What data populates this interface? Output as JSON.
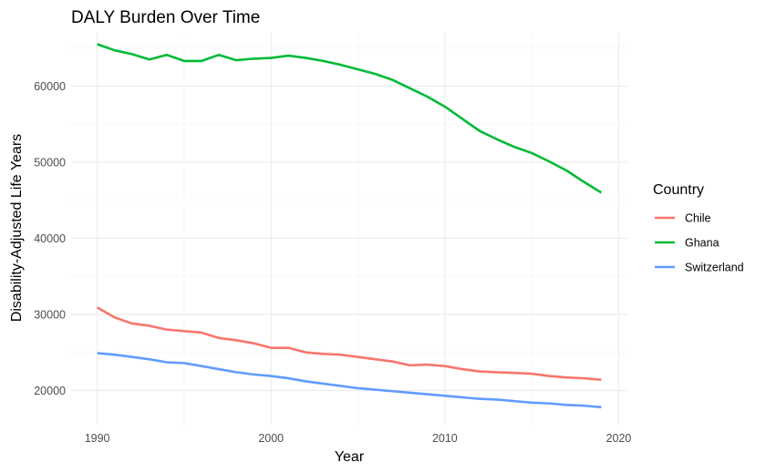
{
  "chart_data": {
    "type": "line",
    "title": "DALY Burden Over Time",
    "xlabel": "Year",
    "ylabel": "Disability-Adjusted Life Years",
    "x": [
      1990,
      1991,
      1992,
      1993,
      1994,
      1995,
      1996,
      1997,
      1998,
      1999,
      2000,
      2001,
      2002,
      2003,
      2004,
      2005,
      2006,
      2007,
      2008,
      2009,
      2010,
      2011,
      2012,
      2013,
      2014,
      2015,
      2016,
      2017,
      2018,
      2019
    ],
    "xlim": [
      1988.5,
      2020.5
    ],
    "ylim": [
      15500,
      67000
    ],
    "x_ticks": [
      1990,
      2000,
      2010,
      2020
    ],
    "y_ticks": [
      20000,
      30000,
      40000,
      50000,
      60000
    ],
    "x_tick_labels": [
      "1990",
      "2000",
      "2010",
      "2020"
    ],
    "y_tick_labels": [
      "20000",
      "30000",
      "40000",
      "50000",
      "60000"
    ],
    "grid": true,
    "legend": {
      "title": "Country",
      "position": "right"
    },
    "series": [
      {
        "name": "Chile",
        "color": "#F8766D",
        "values": [
          30900,
          29600,
          28800,
          28500,
          28000,
          27800,
          27600,
          26900,
          26600,
          26200,
          25600,
          25600,
          25000,
          24800,
          24700,
          24400,
          24100,
          23800,
          23300,
          23400,
          23200,
          22800,
          22500,
          22400,
          22300,
          22200,
          21900,
          21700,
          21600,
          21400
        ]
      },
      {
        "name": "Ghana",
        "color": "#00BA38",
        "values": [
          65500,
          64700,
          64200,
          63500,
          64100,
          63300,
          63300,
          64100,
          63400,
          63600,
          63700,
          64000,
          63700,
          63300,
          62800,
          62200,
          61600,
          60800,
          59700,
          58600,
          57300,
          55700,
          54100,
          53000,
          52000,
          51200,
          50100,
          48900,
          47400,
          46000
        ]
      },
      {
        "name": "Switzerland",
        "color": "#619CFF",
        "values": [
          24900,
          24700,
          24400,
          24100,
          23700,
          23600,
          23200,
          22800,
          22400,
          22100,
          21900,
          21600,
          21200,
          20900,
          20600,
          20300,
          20100,
          19900,
          19700,
          19500,
          19300,
          19100,
          18900,
          18800,
          18600,
          18400,
          18300,
          18100,
          18000,
          17800
        ]
      }
    ]
  }
}
